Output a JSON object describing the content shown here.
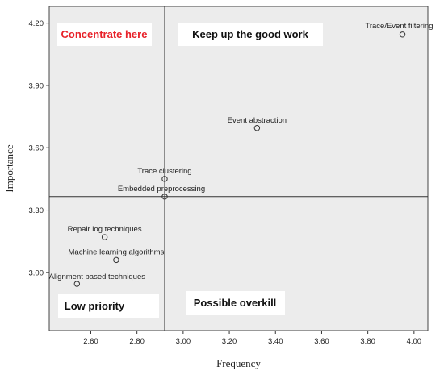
{
  "chart_data": {
    "type": "scatter",
    "xlabel": "Frequency",
    "ylabel": "Importance",
    "xlim": [
      2.42,
      4.06
    ],
    "ylim": [
      2.72,
      4.28
    ],
    "x_ticks": [
      "2.60",
      "2.80",
      "3.00",
      "3.20",
      "3.40",
      "3.60",
      "3.80",
      "4.00"
    ],
    "y_ticks": [
      "3.00",
      "3.30",
      "3.60",
      "3.90",
      "4.20"
    ],
    "grid": false,
    "divider": {
      "x": 2.92,
      "y": 3.365
    },
    "points": [
      {
        "label": "Trace/Event filtering",
        "x": 3.95,
        "y": 4.145
      },
      {
        "label": "Event abstraction",
        "x": 3.32,
        "y": 3.695
      },
      {
        "label": "Trace clustering",
        "x": 2.92,
        "y": 3.45
      },
      {
        "label": "Embedded preprocessing",
        "x": 2.92,
        "y": 3.365
      },
      {
        "label": "Repair log techniques",
        "x": 2.66,
        "y": 3.17
      },
      {
        "label": "Machine learning algorithms",
        "x": 2.71,
        "y": 3.06
      },
      {
        "label": "Alignment based techniques",
        "x": 2.54,
        "y": 2.945
      }
    ],
    "quadrants": [
      {
        "label": "Concentrate here",
        "color": "#e8222a"
      },
      {
        "label": "Keep up the good work",
        "color": "#111111"
      },
      {
        "label": "Low priority",
        "color": "#111111"
      },
      {
        "label": "Possible overkill",
        "color": "#111111"
      }
    ],
    "background": "#ececec",
    "quadrant_box": "#ffffff"
  }
}
